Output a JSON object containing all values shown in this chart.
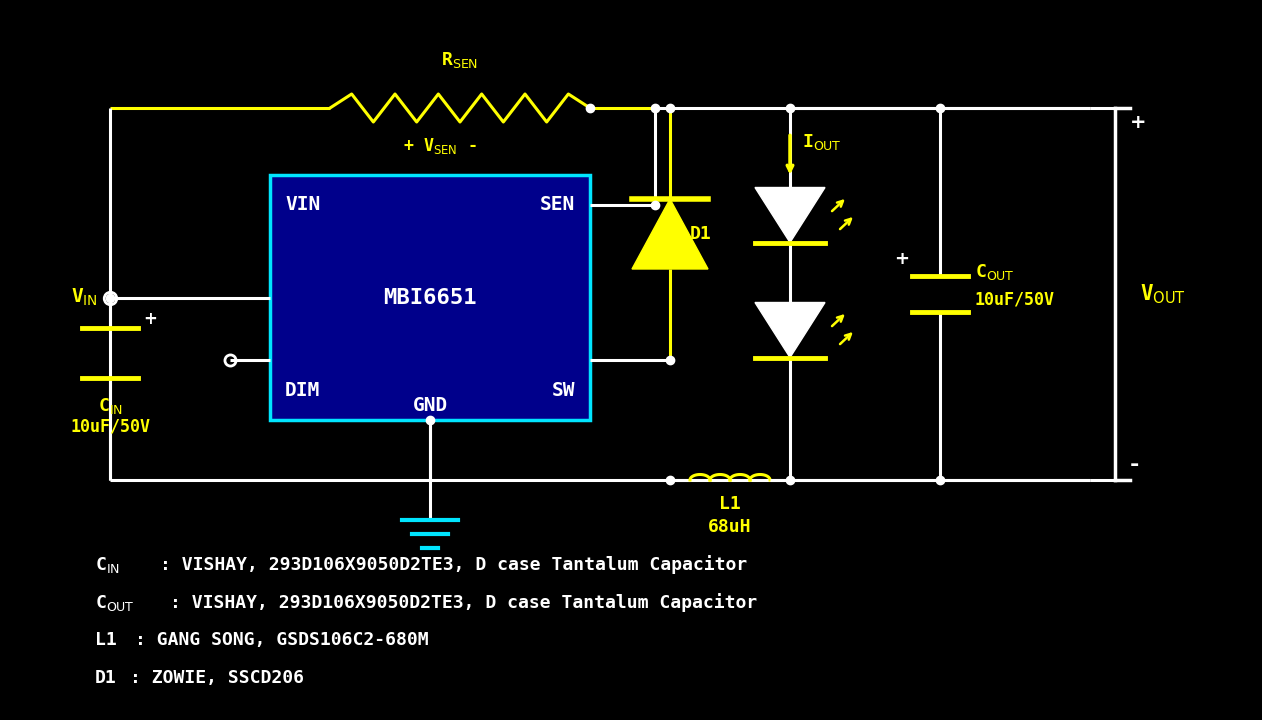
{
  "bg_color": "#000000",
  "wire_color": "#ffffff",
  "yellow_color": "#ffff00",
  "cyan_color": "#00e5ff",
  "ic_fill": "#00008B",
  "ic_border": "#00bfff",
  "text_white": "#ffffff",
  "text_yellow": "#ffff00",
  "lw": 2.2,
  "annotation_lines": [
    [
      "C$_{IN}$",
      ": VISHAY, 293D106X9050D2TE3, D case Tantalum Capacitor"
    ],
    [
      "C$_{OUT}$",
      ": VISHAY, 293D106X9050D2TE3, D case Tantalum Capacitor"
    ],
    [
      "L1",
      ": GANG SONG, GSDS106C2-680M"
    ],
    [
      "D1",
      ": ZOWIE, SSCD206"
    ]
  ]
}
